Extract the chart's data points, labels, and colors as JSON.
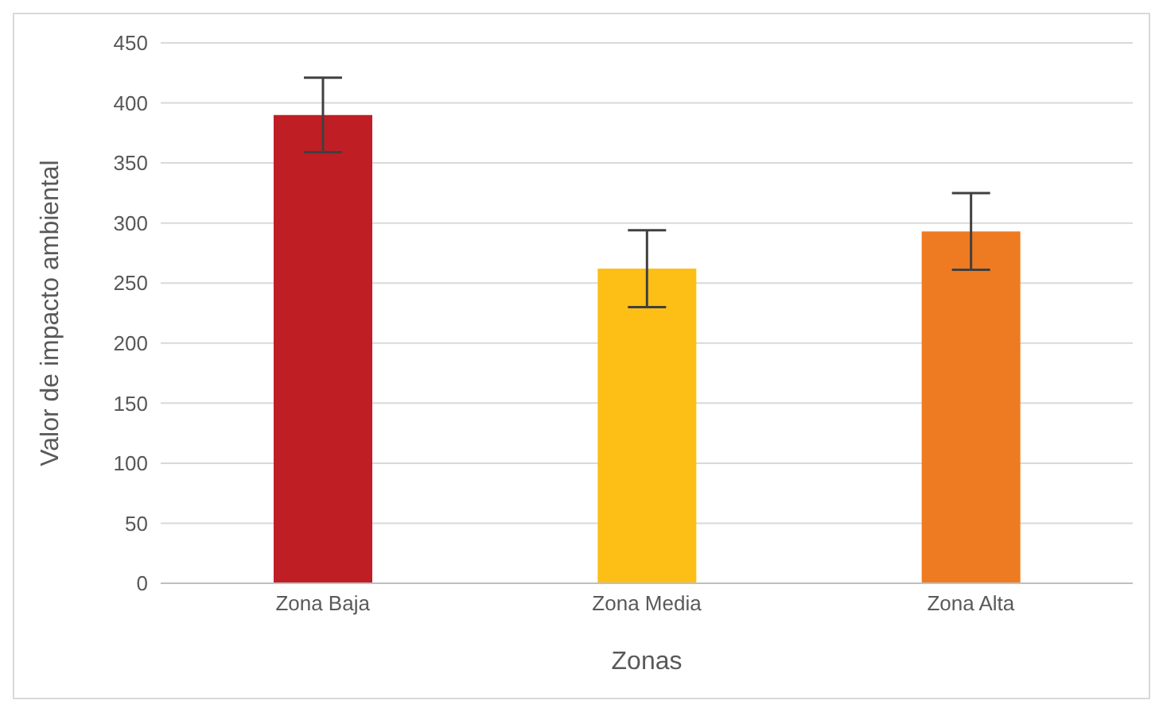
{
  "chart_data": {
    "type": "bar",
    "xlabel": "Zonas",
    "ylabel": "Valor de impacto ambiental",
    "categories": [
      "Zona Baja",
      "Zona Media",
      "Zona Alta"
    ],
    "values": [
      390,
      262,
      293
    ],
    "colors": [
      "#be1e24",
      "#fdbf16",
      "#ee7b22"
    ],
    "errors": [
      31,
      32,
      32
    ],
    "ylim": [
      0,
      450
    ],
    "yticks": [
      0,
      50,
      100,
      150,
      200,
      250,
      300,
      350,
      400,
      450
    ],
    "grid": "y"
  }
}
